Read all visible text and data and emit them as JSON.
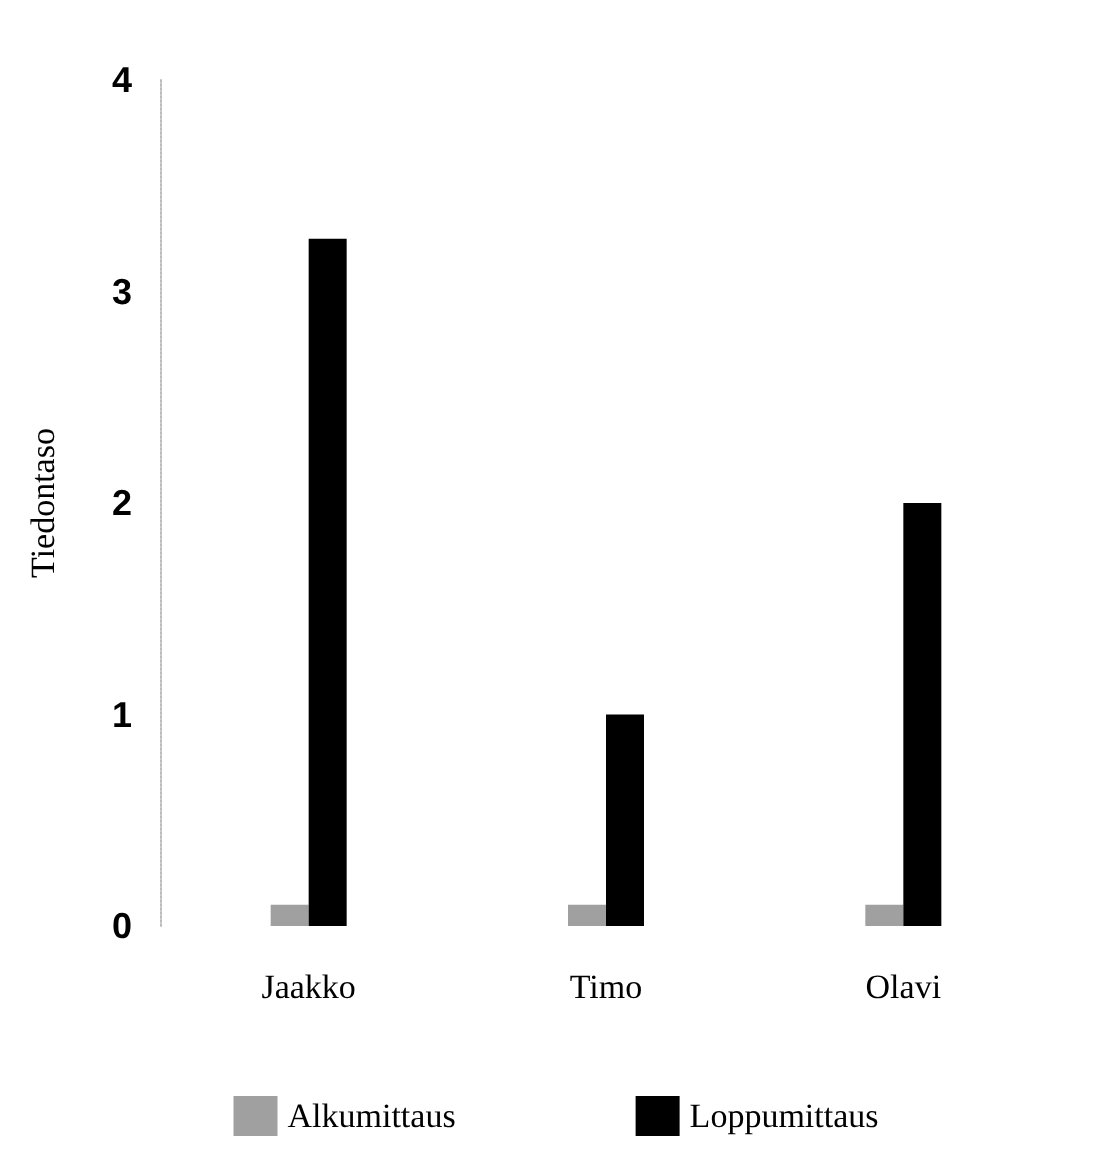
{
  "chart_data": {
    "type": "bar",
    "ylabel": "Tiedontaso",
    "categories": [
      "Jaakko",
      "Timo",
      "Olavi"
    ],
    "series": [
      {
        "name": "Alkumittaus",
        "color": "#a0a0a0",
        "values": [
          0.1,
          0.1,
          0.1
        ]
      },
      {
        "name": "Loppumittaus",
        "color": "#000000",
        "values": [
          3.25,
          1,
          2
        ]
      }
    ],
    "ylim": [
      0,
      4
    ],
    "yticks": [
      0,
      1,
      2,
      3,
      4
    ],
    "legend": "bottom"
  }
}
